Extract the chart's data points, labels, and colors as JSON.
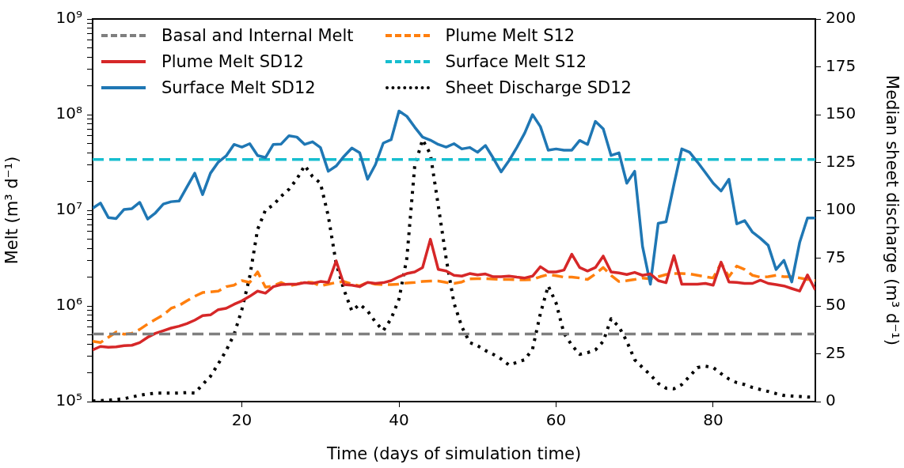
{
  "chart_data": {
    "type": "line",
    "xlabel": "Time (days of simulation time)",
    "ylabel": "Melt (m³ d⁻¹)",
    "y2label": "Median sheet discharge (m³ d⁻¹)",
    "x": [
      1,
      2,
      3,
      4,
      5,
      6,
      7,
      8,
      9,
      10,
      11,
      12,
      13,
      14,
      15,
      16,
      17,
      18,
      19,
      20,
      21,
      22,
      23,
      24,
      25,
      26,
      27,
      28,
      29,
      30,
      31,
      32,
      33,
      34,
      35,
      36,
      37,
      38,
      39,
      40,
      41,
      42,
      43,
      44,
      45,
      46,
      47,
      48,
      49,
      50,
      51,
      52,
      53,
      54,
      55,
      56,
      57,
      58,
      59,
      60,
      61,
      62,
      63,
      64,
      65,
      66,
      67,
      68,
      69,
      70,
      71,
      72,
      73,
      74,
      75,
      76,
      77,
      78,
      79,
      80,
      81,
      82,
      83,
      84,
      85,
      86,
      87,
      88,
      89,
      90,
      91,
      92,
      93
    ],
    "series": [
      {
        "name": "Basal and Internal Melt",
        "color": "#7f7f7f",
        "line_style": "dashed",
        "values": [
          510000,
          510000,
          510000,
          510000,
          510000,
          510000,
          510000,
          510000,
          510000,
          510000,
          510000,
          510000,
          510000,
          510000,
          510000,
          510000,
          510000,
          510000,
          510000,
          510000,
          510000,
          510000,
          510000,
          510000,
          510000,
          510000,
          510000,
          510000,
          510000,
          510000,
          510000,
          510000,
          510000,
          510000,
          510000,
          510000,
          510000,
          510000,
          510000,
          510000,
          510000,
          510000,
          510000,
          510000,
          510000,
          510000,
          510000,
          510000,
          510000,
          510000,
          510000,
          510000,
          510000,
          510000,
          510000,
          510000,
          510000,
          510000,
          510000,
          510000,
          510000,
          510000,
          510000,
          510000,
          510000,
          510000,
          510000,
          510000,
          510000,
          510000,
          510000,
          510000,
          510000,
          510000,
          510000,
          510000,
          510000,
          510000,
          510000,
          510000,
          510000,
          510000,
          510000,
          510000,
          510000,
          510000,
          510000,
          510000,
          510000,
          510000,
          510000,
          510000,
          510000
        ]
      },
      {
        "name": "Plume Melt SD12",
        "color": "#d62728",
        "line_style": "solid",
        "values": [
          347000,
          377000,
          370000,
          373000,
          384000,
          388000,
          414000,
          470000,
          517000,
          551000,
          587000,
          614000,
          654000,
          710000,
          791000,
          806000,
          915000,
          945000,
          1040000,
          1130000,
          1260000,
          1430000,
          1360000,
          1590000,
          1670000,
          1690000,
          1690000,
          1750000,
          1720000,
          1800000,
          1760000,
          2960000,
          1670000,
          1650000,
          1590000,
          1760000,
          1720000,
          1750000,
          1840000,
          2020000,
          2180000,
          2270000,
          2520000,
          4980000,
          2410000,
          2320000,
          2090000,
          2050000,
          2180000,
          2110000,
          2160000,
          2020000,
          2020000,
          2050000,
          2000000,
          1960000,
          2050000,
          2570000,
          2270000,
          2270000,
          2370000,
          3470000,
          2520000,
          2320000,
          2520000,
          3320000,
          2270000,
          2210000,
          2130000,
          2240000,
          2090000,
          2160000,
          1840000,
          1750000,
          3360000,
          1690000,
          1690000,
          1690000,
          1720000,
          1650000,
          2870000,
          1780000,
          1760000,
          1720000,
          1720000,
          1860000,
          1720000,
          1670000,
          1620000,
          1520000,
          1430000,
          2110000,
          1470000
        ]
      },
      {
        "name": "Surface Melt SD12",
        "color": "#1f77b4",
        "line_style": "solid",
        "values": [
          10500000,
          11900000,
          8400000,
          8200000,
          10200000,
          10400000,
          12100000,
          8100000,
          9400000,
          11600000,
          12300000,
          12500000,
          17500000,
          24400000,
          14600000,
          24400000,
          31900000,
          37000000,
          48800000,
          45800000,
          49700000,
          37400000,
          35600000,
          48800000,
          49300000,
          60200000,
          58300000,
          48800000,
          52000000,
          45300000,
          25600000,
          29000000,
          36700000,
          44700000,
          39900000,
          21100000,
          30000000,
          50400000,
          54700000,
          109000000,
          96000000,
          74000000,
          58300000,
          54100000,
          48800000,
          45800000,
          49700000,
          43800000,
          45300000,
          40400000,
          47600000,
          35100000,
          25200000,
          33000000,
          45300000,
          64100000,
          100000000,
          75000000,
          42500000,
          43800000,
          42500000,
          42500000,
          53700000,
          48800000,
          85000000,
          71000000,
          37400000,
          39900000,
          19200000,
          25600000,
          4200000,
          1690000,
          7300000,
          7600000,
          18600000,
          43800000,
          40400000,
          31900000,
          24800000,
          19200000,
          15900000,
          21100000,
          7200000,
          7800000,
          5900000,
          5100000,
          4300000,
          2400000,
          3000000,
          1780000,
          4600000,
          8300000,
          8300000
        ]
      },
      {
        "name": "Plume Melt S12",
        "color": "#ff7f0e",
        "line_style": "dashed",
        "values": [
          427000,
          414000,
          470000,
          534000,
          507000,
          517000,
          569000,
          646000,
          724000,
          806000,
          945000,
          1010000,
          1130000,
          1260000,
          1380000,
          1400000,
          1430000,
          1590000,
          1650000,
          1840000,
          1760000,
          2270000,
          1570000,
          1620000,
          1760000,
          1620000,
          1690000,
          1780000,
          1760000,
          1620000,
          1690000,
          1760000,
          1800000,
          1690000,
          1620000,
          1760000,
          1690000,
          1670000,
          1670000,
          1690000,
          1740000,
          1760000,
          1800000,
          1820000,
          1820000,
          1760000,
          1720000,
          1780000,
          1920000,
          1930000,
          1930000,
          1910000,
          1890000,
          1890000,
          1880000,
          1870000,
          1890000,
          2020000,
          2130000,
          2070000,
          2000000,
          2000000,
          1960000,
          1890000,
          2160000,
          2520000,
          2090000,
          1800000,
          1840000,
          1890000,
          1960000,
          1920000,
          2020000,
          2130000,
          2180000,
          2180000,
          2160000,
          2090000,
          2020000,
          1960000,
          2810000,
          2020000,
          2610000,
          2410000,
          2090000,
          2000000,
          2020000,
          2090000,
          2020000,
          2020000,
          1960000,
          1890000,
          1840000
        ]
      },
      {
        "name": "Surface Melt S12",
        "color": "#17becf",
        "line_style": "dashed",
        "values": [
          34000000,
          34000000,
          34000000,
          34000000,
          34000000,
          34000000,
          34000000,
          34000000,
          34000000,
          34000000,
          34000000,
          34000000,
          34000000,
          34000000,
          34000000,
          34000000,
          34000000,
          34000000,
          34000000,
          34000000,
          34000000,
          34000000,
          34000000,
          34000000,
          34000000,
          34000000,
          34000000,
          34000000,
          34000000,
          34000000,
          34000000,
          34000000,
          34000000,
          34000000,
          34000000,
          34000000,
          34000000,
          34000000,
          34000000,
          34000000,
          34000000,
          34000000,
          34000000,
          34000000,
          34000000,
          34000000,
          34000000,
          34000000,
          34000000,
          34000000,
          34000000,
          34000000,
          34000000,
          34000000,
          34000000,
          34000000,
          34000000,
          34000000,
          34000000,
          34000000,
          34000000,
          34000000,
          34000000,
          34000000,
          34000000,
          34000000,
          34000000,
          34000000,
          34000000,
          34000000,
          34000000,
          34000000,
          34000000,
          34000000,
          34000000,
          34000000,
          34000000,
          34000000,
          34000000,
          34000000,
          34000000,
          34000000,
          34000000,
          34000000,
          34000000,
          34000000,
          34000000,
          34000000,
          34000000,
          34000000,
          34000000,
          34000000,
          34000000
        ]
      },
      {
        "name": "Sheet Discharge SD12",
        "color": "#000000",
        "line_style": "dotted",
        "axis": "y2",
        "values": [
          0.3,
          0.5,
          0.7,
          1.1,
          1.5,
          2.4,
          3.3,
          4.0,
          4.4,
          4.4,
          4.4,
          4.5,
          4.7,
          4.4,
          8.9,
          13.2,
          19.8,
          26.7,
          35.0,
          48.1,
          65.3,
          90.0,
          100.1,
          102.8,
          107.3,
          111.0,
          116.3,
          123.4,
          117.6,
          114.2,
          97.0,
          72.2,
          58.4,
          47.4,
          50.8,
          47.4,
          41.6,
          37.1,
          43.3,
          53.6,
          74.9,
          123.1,
          136.9,
          129.3,
          102.5,
          74.9,
          51.5,
          39.1,
          30.9,
          29.2,
          26.7,
          24.7,
          22.3,
          19.1,
          20.5,
          21.9,
          27.4,
          46.0,
          60.5,
          51.5,
          35.7,
          29.5,
          24.7,
          25.6,
          27.0,
          31.5,
          43.3,
          39.1,
          31.5,
          21.9,
          17.8,
          14.0,
          9.5,
          7.0,
          6.7,
          8.9,
          13.2,
          17.8,
          18.5,
          17.8,
          14.6,
          11.8,
          9.9,
          8.9,
          7.4,
          6.3,
          5.3,
          4.2,
          3.2,
          2.9,
          2.7,
          2.4,
          2.4
        ]
      }
    ],
    "xlim": [
      1,
      93
    ],
    "xticks": [
      20,
      40,
      60,
      80
    ],
    "log": true,
    "ylim": [
      100000,
      1000000000
    ],
    "yticks": [
      {
        "value": 100000,
        "label": "10⁵"
      },
      {
        "value": 200000,
        "label": null
      },
      {
        "value": 300000,
        "label": null
      },
      {
        "value": 400000,
        "label": null
      },
      {
        "value": 500000,
        "label": null
      },
      {
        "value": 600000,
        "label": null
      },
      {
        "value": 700000,
        "label": null
      },
      {
        "value": 800000,
        "label": null
      },
      {
        "value": 900000,
        "label": null
      },
      {
        "value": 1000000,
        "label": "10⁶"
      },
      {
        "value": 2000000,
        "label": null
      },
      {
        "value": 3000000,
        "label": null
      },
      {
        "value": 4000000,
        "label": null
      },
      {
        "value": 5000000,
        "label": null
      },
      {
        "value": 6000000,
        "label": null
      },
      {
        "value": 7000000,
        "label": null
      },
      {
        "value": 8000000,
        "label": null
      },
      {
        "value": 9000000,
        "label": null
      },
      {
        "value": 10000000,
        "label": "10⁷"
      },
      {
        "value": 20000000,
        "label": null
      },
      {
        "value": 30000000,
        "label": null
      },
      {
        "value": 40000000,
        "label": null
      },
      {
        "value": 50000000,
        "label": null
      },
      {
        "value": 60000000,
        "label": null
      },
      {
        "value": 70000000,
        "label": null
      },
      {
        "value": 80000000,
        "label": null
      },
      {
        "value": 90000000,
        "label": null
      },
      {
        "value": 100000000,
        "label": "10⁸"
      },
      {
        "value": 200000000,
        "label": null
      },
      {
        "value": 300000000,
        "label": null
      },
      {
        "value": 400000000,
        "label": null
      },
      {
        "value": 500000000,
        "label": null
      },
      {
        "value": 600000000,
        "label": null
      },
      {
        "value": 700000000,
        "label": null
      },
      {
        "value": 800000000,
        "label": null
      },
      {
        "value": 900000000,
        "label": null
      },
      {
        "value": 1000000000,
        "label": "10⁹"
      }
    ],
    "y2lim": [
      0,
      200
    ],
    "y2ticks": [
      0,
      25,
      50,
      75,
      100,
      125,
      150,
      175,
      200
    ],
    "grid": false,
    "legend": "top",
    "marker": "none"
  }
}
